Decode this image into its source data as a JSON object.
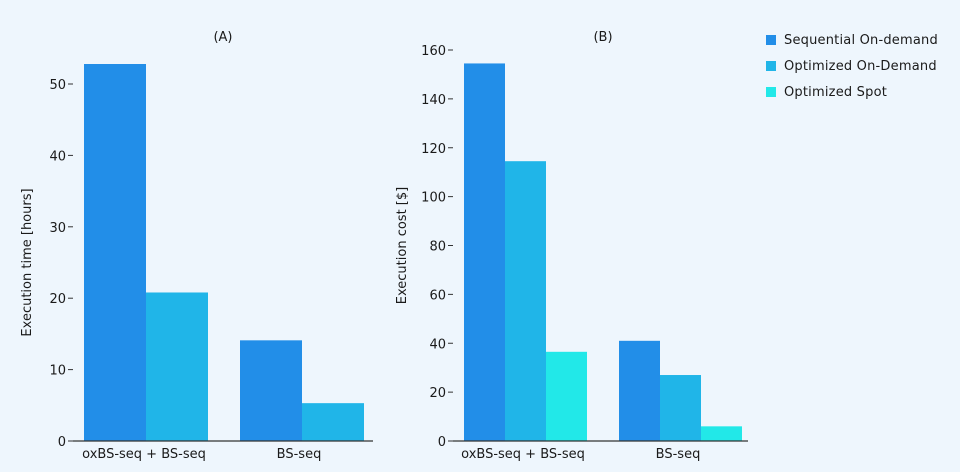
{
  "colors": {
    "sequential_on_demand": "#228ee8",
    "optimized_on_demand": "#20b5e8",
    "optimized_spot": "#22e8e8"
  },
  "legend": [
    {
      "label": "Sequential On-demand",
      "color": "#228ee8"
    },
    {
      "label": "Optimized On-Demand",
      "color": "#20b5e8"
    },
    {
      "label": "Optimized Spot",
      "color": "#22e8e8"
    }
  ],
  "chart_data": [
    {
      "type": "bar",
      "title": "(A)",
      "xlabel": "",
      "ylabel": "Execution time [hours]",
      "categories": [
        "oxBS-seq + BS-seq",
        "BS-seq"
      ],
      "ylim": [
        0,
        55
      ],
      "yticks": [
        0,
        10,
        20,
        30,
        40,
        50
      ],
      "grid": false,
      "series": [
        {
          "name": "Sequential On-demand",
          "color": "#228ee8",
          "values": [
            52.8,
            14.1
          ]
        },
        {
          "name": "Optimized On-Demand",
          "color": "#20b5e8",
          "values": [
            20.8,
            5.3
          ]
        }
      ]
    },
    {
      "type": "bar",
      "title": "(B)",
      "xlabel": "",
      "ylabel": "Execution cost [$]",
      "categories": [
        "oxBS-seq + BS-seq",
        "BS-seq"
      ],
      "ylim": [
        0,
        160
      ],
      "yticks": [
        0,
        20,
        40,
        60,
        80,
        100,
        120,
        140,
        160
      ],
      "grid": false,
      "series": [
        {
          "name": "Sequential On-demand",
          "color": "#228ee8",
          "values": [
            154.5,
            41
          ]
        },
        {
          "name": "Optimized On-Demand",
          "color": "#20b5e8",
          "values": [
            114.5,
            27
          ]
        },
        {
          "name": "Optimized Spot",
          "color": "#22e8e8",
          "values": [
            36.5,
            6
          ]
        }
      ],
      "legend_position": "top-right"
    }
  ]
}
